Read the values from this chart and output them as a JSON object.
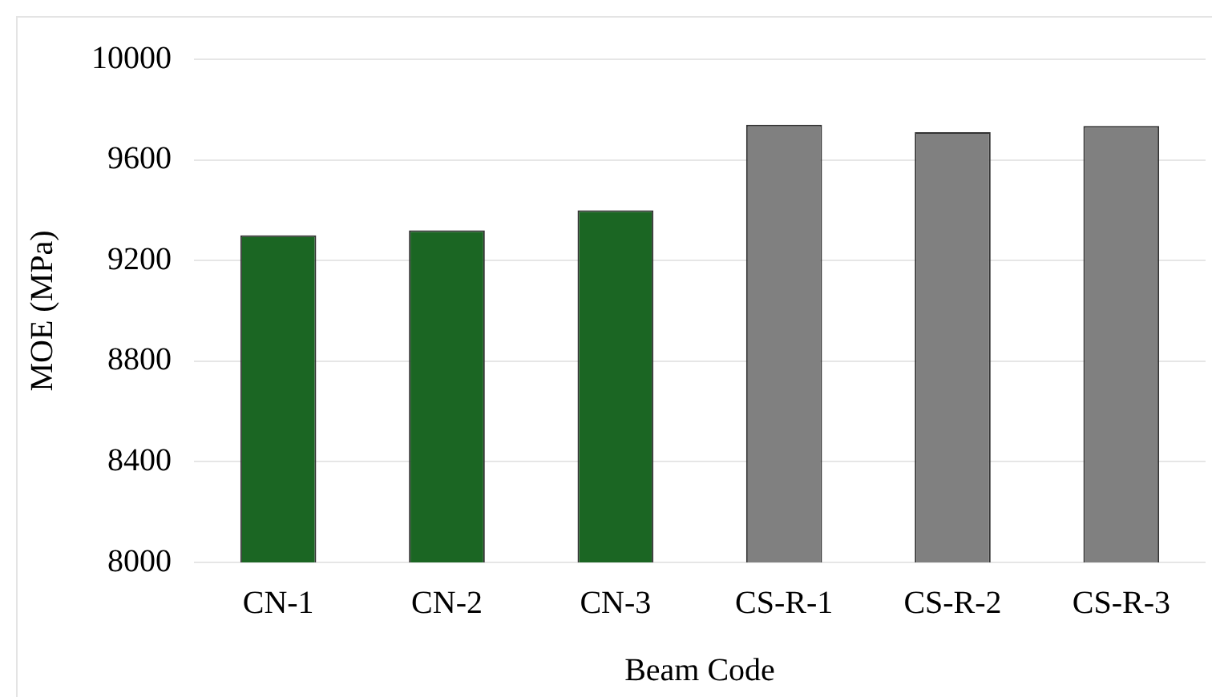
{
  "chart_data": {
    "type": "bar",
    "xlabel": "Beam Code",
    "ylabel": "MOE (MPa)",
    "categories": [
      "CN-1",
      "CN-2",
      "CN-3",
      "CS-R-1",
      "CS-R-2",
      "CS-R-3"
    ],
    "values": [
      9300,
      9320,
      9400,
      9740,
      9710,
      9735
    ],
    "colors": [
      "#1b6623",
      "#1b6623",
      "#1b6623",
      "#808080",
      "#808080",
      "#808080"
    ],
    "ylim": [
      8000,
      10000
    ],
    "yticks": [
      8000,
      8400,
      8800,
      9200,
      9600,
      10000
    ],
    "grid": "y",
    "legend": false
  }
}
